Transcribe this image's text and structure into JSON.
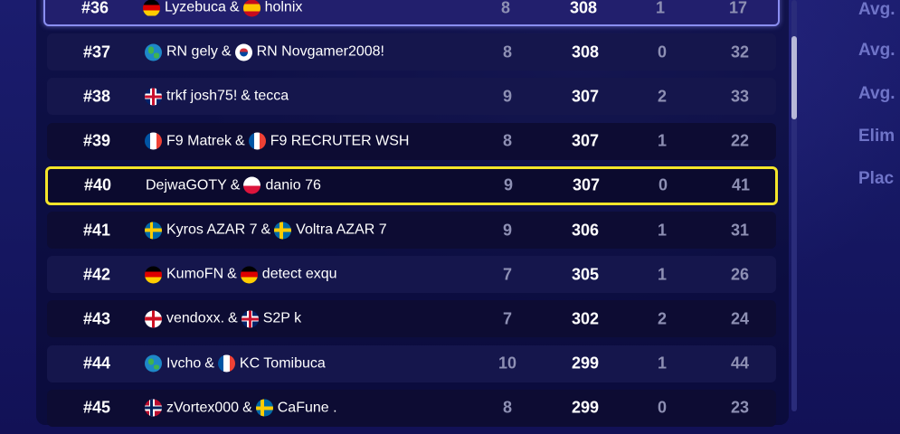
{
  "rows": [
    {
      "rank": "#36",
      "p1": "Lyzebuca",
      "f1": "de",
      "p2": "holnix",
      "f2": "es",
      "matches": "8",
      "points": "308",
      "wins": "1",
      "elims": "17",
      "style": "hl-blue"
    },
    {
      "rank": "#37",
      "p1": "RN gely",
      "f1": "world",
      "p2": "RN Novgamer2008!",
      "f2": "kr",
      "matches": "8",
      "points": "308",
      "wins": "0",
      "elims": "32",
      "style": "light"
    },
    {
      "rank": "#38",
      "p1": "trkf josh75!",
      "f1": "gb",
      "p2": "tecca",
      "f2": "",
      "matches": "9",
      "points": "307",
      "wins": "2",
      "elims": "33",
      "style": "light"
    },
    {
      "rank": "#39",
      "p1": "F9 Matrek",
      "f1": "fr",
      "p2": "F9 RECRUTER WSH",
      "f2": "fr",
      "matches": "8",
      "points": "307",
      "wins": "1",
      "elims": "22",
      "style": "dark"
    },
    {
      "rank": "#40",
      "p1": "DejwaGOTY",
      "f1": "",
      "p2": "danio 76",
      "f2": "pl",
      "matches": "9",
      "points": "307",
      "wins": "0",
      "elims": "41",
      "style": "hl-yellow"
    },
    {
      "rank": "#41",
      "p1": "Kyros AZAR 7",
      "f1": "se",
      "p2": "Voltra AZAR 7",
      "f2": "se",
      "matches": "9",
      "points": "306",
      "wins": "1",
      "elims": "31",
      "style": "dark"
    },
    {
      "rank": "#42",
      "p1": "KumoFN",
      "f1": "de",
      "p2": "detect exqu",
      "f2": "de",
      "matches": "7",
      "points": "305",
      "wins": "1",
      "elims": "26",
      "style": "light"
    },
    {
      "rank": "#43",
      "p1": "vendoxx.",
      "f1": "eng",
      "p2": "S2P k",
      "f2": "gb",
      "matches": "7",
      "points": "302",
      "wins": "2",
      "elims": "24",
      "style": "dark"
    },
    {
      "rank": "#44",
      "p1": "Ivcho",
      "f1": "world",
      "p2": "KC Tomibuca",
      "f2": "fr",
      "matches": "10",
      "points": "299",
      "wins": "1",
      "elims": "44",
      "style": "light"
    },
    {
      "rank": "#45",
      "p1": "zVortex000",
      "f1": "no",
      "p2": "CaFune .",
      "f2": "se",
      "matches": "8",
      "points": "299",
      "wins": "0",
      "elims": "23",
      "style": "dark"
    }
  ],
  "separator": "&",
  "side_labels": [
    "Avg.",
    "Avg.",
    "Avg.",
    "Elim",
    "Plac"
  ]
}
